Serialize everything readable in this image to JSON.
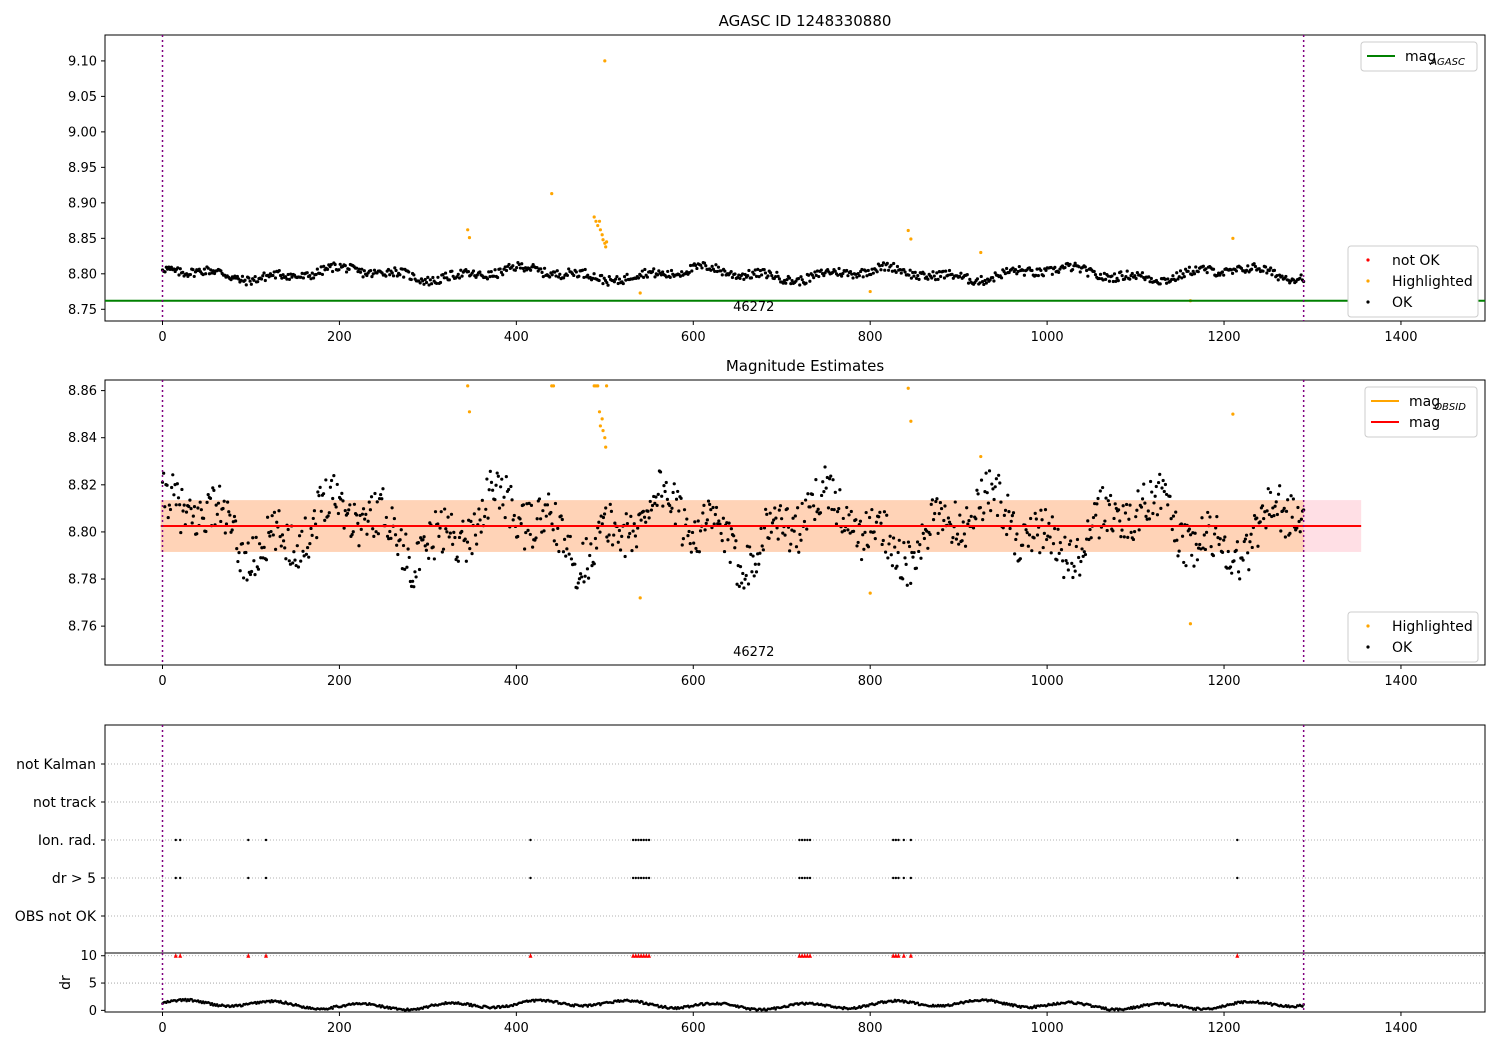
{
  "chart_data": [
    {
      "type": "scatter",
      "title": "AGASC ID 1248330880",
      "xlabel": "",
      "ylabel": "",
      "xlim": [
        -65,
        1495
      ],
      "ylim": [
        8.7335,
        9.1365
      ],
      "xticks": [
        0,
        200,
        400,
        600,
        800,
        1000,
        1200,
        1400
      ],
      "yticks": [
        8.75,
        8.8,
        8.85,
        8.9,
        8.95,
        9.0,
        9.05,
        9.1
      ],
      "ytick_labels": [
        "8.75",
        "8.80",
        "8.85",
        "8.90",
        "8.95",
        "9.00",
        "9.05",
        "9.10"
      ],
      "vlines": [
        0,
        1290
      ],
      "hline": {
        "name": "mag",
        "name_sub": "AGASC",
        "y": 8.762,
        "color": "#008000"
      },
      "obsid_label": {
        "text": "46272",
        "x": 645
      },
      "legend_top": [
        {
          "name": "mag",
          "sub": "AGASC",
          "color": "#008000",
          "kind": "line"
        }
      ],
      "legend_bottom": [
        {
          "name": "not OK",
          "color": "#ff0000",
          "kind": "dot"
        },
        {
          "name": "Highlighted",
          "color": "#ffa500",
          "kind": "dot"
        },
        {
          "name": "OK",
          "color": "#000000",
          "kind": "dot"
        }
      ],
      "series": [
        {
          "name": "OK",
          "color": "#000000",
          "base": 8.8,
          "amp": 0.014,
          "n": 900,
          "x_range": [
            0,
            1290
          ]
        },
        {
          "name": "Highlighted",
          "color": "#ffa500",
          "points": [
            [
              345,
              8.862
            ],
            [
              347,
              8.851
            ],
            [
              440,
              8.913
            ],
            [
              488,
              8.88
            ],
            [
              490,
              8.874
            ],
            [
              492,
              8.868
            ],
            [
              494,
              8.874
            ],
            [
              495,
              8.862
            ],
            [
              497,
              8.855
            ],
            [
              498,
              8.848
            ],
            [
              500,
              8.843
            ],
            [
              501,
              8.838
            ],
            [
              502,
              8.845
            ],
            [
              500,
              9.1
            ],
            [
              540,
              8.773
            ],
            [
              800,
              8.775
            ],
            [
              843,
              8.861
            ],
            [
              846,
              8.849
            ],
            [
              925,
              8.83
            ],
            [
              1162,
              8.762
            ],
            [
              1210,
              8.85
            ]
          ]
        }
      ]
    },
    {
      "type": "scatter",
      "title": "Magnitude Estimates",
      "xlabel": "",
      "ylabel": "",
      "xlim": [
        -65,
        1495
      ],
      "ylim": [
        8.7435,
        8.8645
      ],
      "xticks": [
        0,
        200,
        400,
        600,
        800,
        1000,
        1200,
        1400
      ],
      "yticks": [
        8.76,
        8.78,
        8.8,
        8.82,
        8.84,
        8.86
      ],
      "ytick_labels": [
        "8.76",
        "8.78",
        "8.80",
        "8.82",
        "8.84",
        "8.86"
      ],
      "vlines": [
        0,
        1290
      ],
      "hline": {
        "name": "mag",
        "y": 8.8025,
        "color": "#ff0000",
        "x_range": [
          -2,
          1355
        ]
      },
      "bands": [
        {
          "y0": 8.7915,
          "y1": 8.8135,
          "x0": -2,
          "x1": 1355,
          "color": "#ffc0cb",
          "opacity": 0.5
        },
        {
          "y0": 8.7915,
          "y1": 8.8135,
          "x0": -2,
          "x1": 1290,
          "color": "#ffa500",
          "opacity": 0.2
        }
      ],
      "obsid_band": {
        "name": "mag",
        "sub": "OBSID",
        "y": 8.8025,
        "color": "#ffa500"
      },
      "obsid_label": {
        "text": "46272",
        "x": 645
      },
      "legend_top": [
        {
          "name": "mag",
          "sub": "OBSID",
          "color": "#ffa500",
          "kind": "line"
        },
        {
          "name": "mag",
          "sub": "",
          "color": "#ff0000",
          "kind": "line"
        }
      ],
      "legend_bottom": [
        {
          "name": "Highlighted",
          "color": "#ffa500",
          "kind": "dot"
        },
        {
          "name": "OK",
          "color": "#000000",
          "kind": "dot"
        }
      ],
      "series": [
        {
          "name": "OK",
          "color": "#000000",
          "base": 8.802,
          "amp": 0.022,
          "n": 1000,
          "x_range": [
            0,
            1290
          ]
        },
        {
          "name": "Highlighted",
          "color": "#ffa500",
          "points": [
            [
              345,
              8.862
            ],
            [
              347,
              8.851
            ],
            [
              440,
              8.862
            ],
            [
              442,
              8.862
            ],
            [
              488,
              8.862
            ],
            [
              490,
              8.862
            ],
            [
              492,
              8.862
            ],
            [
              494,
              8.851
            ],
            [
              495,
              8.845
            ],
            [
              497,
              8.848
            ],
            [
              498,
              8.843
            ],
            [
              500,
              8.84
            ],
            [
              501,
              8.836
            ],
            [
              502,
              8.862
            ],
            [
              540,
              8.772
            ],
            [
              800,
              8.774
            ],
            [
              843,
              8.861
            ],
            [
              846,
              8.847
            ],
            [
              925,
              8.832
            ],
            [
              1162,
              8.761
            ],
            [
              1210,
              8.85
            ]
          ]
        }
      ]
    },
    {
      "type": "scatter",
      "title": "",
      "xlabel": "",
      "ylabel": "",
      "xlim": [
        -65,
        1495
      ],
      "categories": [
        "not Kalman",
        "not track",
        "Ion. rad.",
        "dr > 5",
        "OBS not OK"
      ],
      "vlines": [
        0,
        1290
      ],
      "flag_x": [
        15,
        20,
        97,
        117,
        416,
        532,
        535,
        538,
        541,
        544,
        547,
        550,
        720,
        723,
        726,
        729,
        732,
        826,
        829,
        832,
        838,
        846,
        1215
      ],
      "flag_rows": [
        "Ion. rad.",
        "dr > 5"
      ]
    },
    {
      "type": "scatter",
      "title": "",
      "xlabel": "",
      "ylabel": "dr",
      "xlim": [
        -65,
        1495
      ],
      "ylim": [
        -0.3,
        10.5
      ],
      "yticks": [
        0,
        5,
        10
      ],
      "ytick_labels": [
        "0",
        "5",
        "10"
      ],
      "vlines": [
        0,
        1290
      ],
      "clipped_markers": {
        "y": 10,
        "color": "#ff0000",
        "x": [
          15,
          20,
          97,
          117,
          416,
          532,
          535,
          538,
          541,
          544,
          547,
          550,
          720,
          723,
          726,
          729,
          732,
          826,
          829,
          832,
          838,
          846,
          1215
        ]
      },
      "series": [
        {
          "name": "dr",
          "color": "#000000",
          "base": 1.0,
          "amp": 0.9,
          "n": 900,
          "x_range": [
            0,
            1290
          ]
        }
      ]
    }
  ]
}
